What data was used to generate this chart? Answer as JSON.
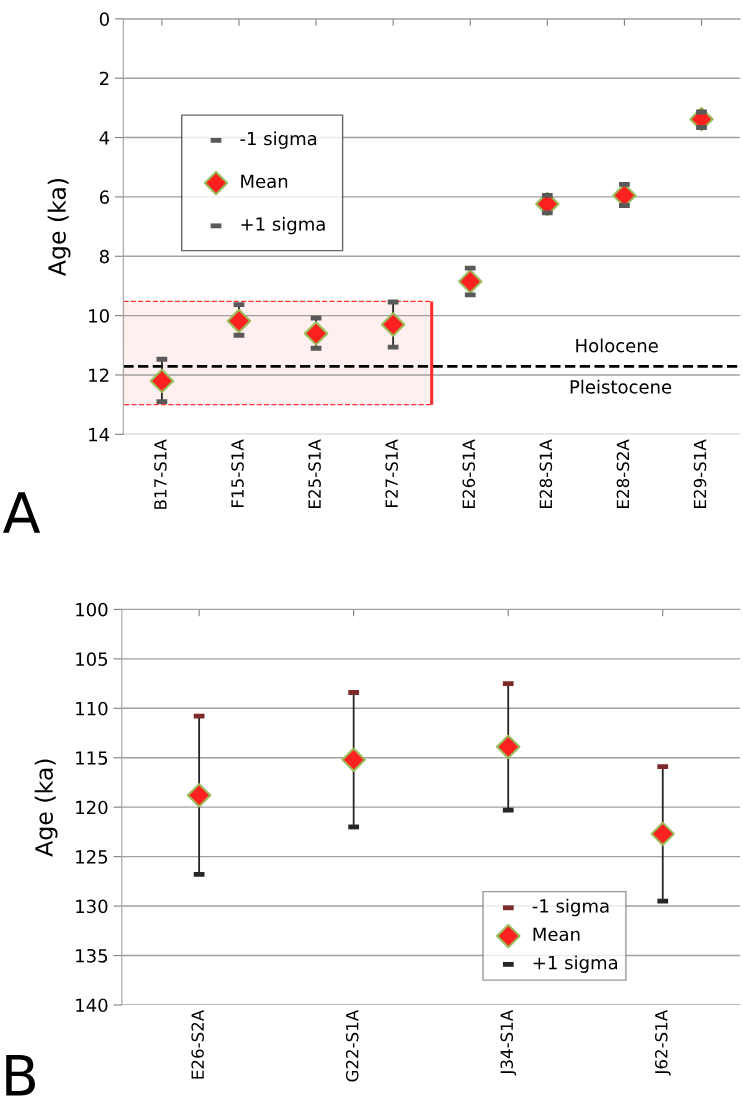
{
  "chart_data": [
    {
      "type": "scatter",
      "ylabel": "Age (ka)",
      "categories": [
        "B17-S1A",
        "F15-S1A",
        "E25-S1A",
        "F27-S1A",
        "E26-S1A",
        "E28-S1A",
        "E28-S2A",
        "E29-S1A"
      ],
      "series": [
        {
          "name": "-1 sigma",
          "color": "#595959",
          "values": [
            11.47,
            9.63,
            10.08,
            9.54,
            8.4,
            5.95,
            5.58,
            3.14
          ]
        },
        {
          "name": "Mean",
          "color": "#ff2020",
          "marker": "diamond",
          "values": [
            12.2,
            10.18,
            10.6,
            10.3,
            8.85,
            6.24,
            5.95,
            3.38
          ],
          "errors": [
            [
              0.7,
              0.7
            ],
            [
              0.5,
              0.5
            ],
            [
              0.5,
              0.5
            ],
            [
              0.8,
              0.8
            ],
            [
              0.45,
              0.45
            ],
            [
              0.3,
              0.3
            ],
            [
              0.35,
              0.35
            ],
            [
              0.25,
              0.25
            ]
          ]
        },
        {
          "name": "+1 sigma",
          "color": "#595959",
          "values": [
            12.9,
            10.66,
            11.1,
            11.06,
            9.3,
            6.54,
            6.29,
            3.66
          ]
        }
      ],
      "ylim": [
        14,
        0
      ],
      "yticks": [
        0,
        2,
        4,
        6,
        8,
        10,
        12,
        14
      ],
      "grid": "y",
      "legend": "top left",
      "ref_lines": [
        {
          "axis": "y",
          "value": 11.71,
          "color": "#000000",
          "line_style": "dashed"
        }
      ],
      "bands": [
        {
          "axis": "y",
          "from": 9.52,
          "to": 13.0,
          "color": "#ff3030"
        }
      ],
      "annotations": [
        "Holocene",
        "Pleistocene",
        "A"
      ]
    },
    {
      "type": "scatter",
      "ylabel": "Age (ka)",
      "categories": [
        "E26-S2A",
        "G22-S1A",
        "J34-S1A",
        "J62-S1A"
      ],
      "series": [
        {
          "name": "-1 sigma",
          "color": "#7f2a2a",
          "values": [
            110.8,
            108.4,
            107.5,
            115.9
          ]
        },
        {
          "name": "Mean",
          "color": "#ff2020",
          "marker": "diamond",
          "values": [
            118.8,
            115.2,
            113.9,
            122.7
          ],
          "errors": [
            [
              8.0,
              8.0
            ],
            [
              6.8,
              6.8
            ],
            [
              6.4,
              6.4
            ],
            [
              6.8,
              6.8
            ]
          ]
        },
        {
          "name": "+1 sigma",
          "color": "#262626",
          "values": [
            126.8,
            122.0,
            120.3,
            129.5
          ]
        }
      ],
      "ylim": [
        140,
        100
      ],
      "yticks": [
        100,
        105,
        110,
        115,
        120,
        125,
        130,
        135,
        140
      ],
      "grid": "y",
      "legend": "bottom right",
      "annotations": [
        "B"
      ]
    }
  ]
}
